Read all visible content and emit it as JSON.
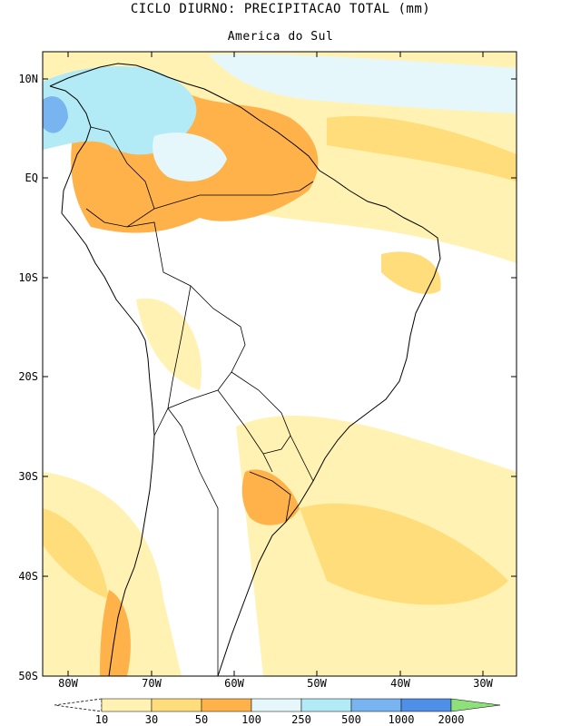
{
  "title": "CICLO DIURNO: PRECIPITACAO TOTAL (mm)",
  "subtitle": "America do Sul",
  "colors": {
    "c10_30": "#fff2b3",
    "c30_50": "#ffdd7a",
    "c50_100": "#ffb24a",
    "c100_250": "#e6f7fb",
    "c250_500": "#b2ebf5",
    "c500_1000": "#78b4f0",
    "c1000_2000": "#4f8fe8",
    "c2000": "#8ee07a",
    "coast": "#000000"
  },
  "map": {
    "lat_labels": [
      "10N",
      "EQ",
      "10S",
      "20S",
      "30S",
      "40S",
      "50S"
    ],
    "lon_labels": [
      "80W",
      "70W",
      "60W",
      "50W",
      "40W",
      "30W"
    ]
  },
  "colorbar": {
    "labels": [
      "10",
      "30",
      "50",
      "100",
      "250",
      "500",
      "1000",
      "2000"
    ]
  }
}
